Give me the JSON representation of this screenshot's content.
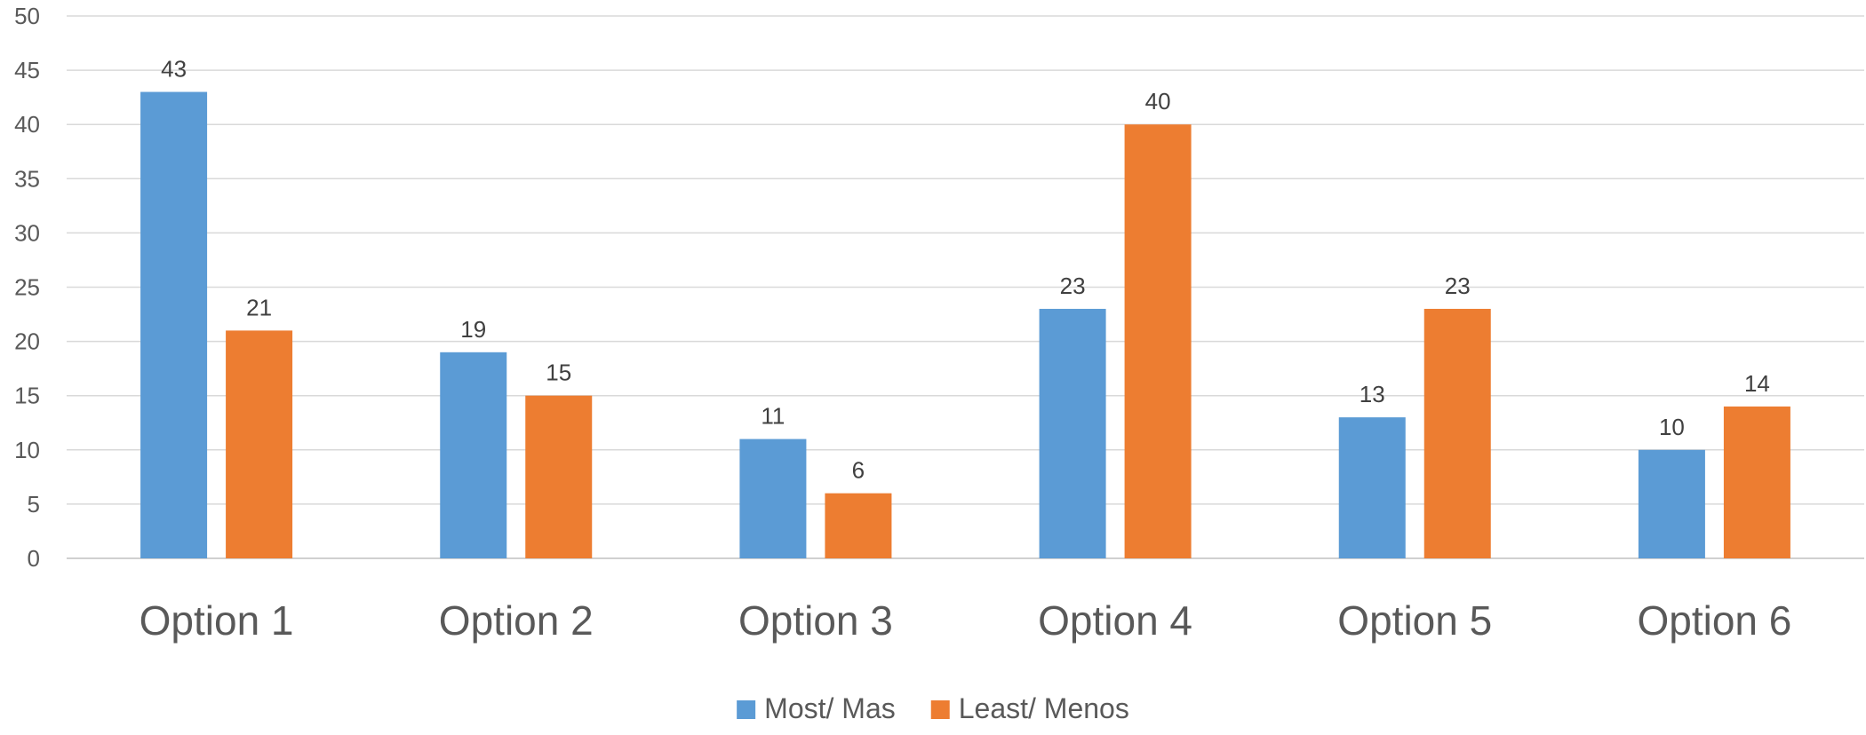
{
  "chart_data": {
    "type": "bar",
    "title": "",
    "xlabel": "",
    "ylabel": "",
    "categories": [
      "Option 1",
      "Option 2",
      "Option 3",
      "Option 4",
      "Option 5",
      "Option 6"
    ],
    "series": [
      {
        "name": "Most/ Mas",
        "values": [
          43,
          19,
          11,
          23,
          13,
          10
        ],
        "color": "#5b9bd5"
      },
      {
        "name": "Least/ Menos",
        "values": [
          21,
          15,
          6,
          40,
          23,
          14
        ],
        "color": "#ed7d31"
      }
    ],
    "ylim": [
      0,
      50
    ],
    "yticks": [
      0,
      5,
      10,
      15,
      20,
      25,
      30,
      35,
      40,
      45,
      50
    ],
    "grid": true,
    "data_labels": true,
    "legend": "bottom-center"
  }
}
